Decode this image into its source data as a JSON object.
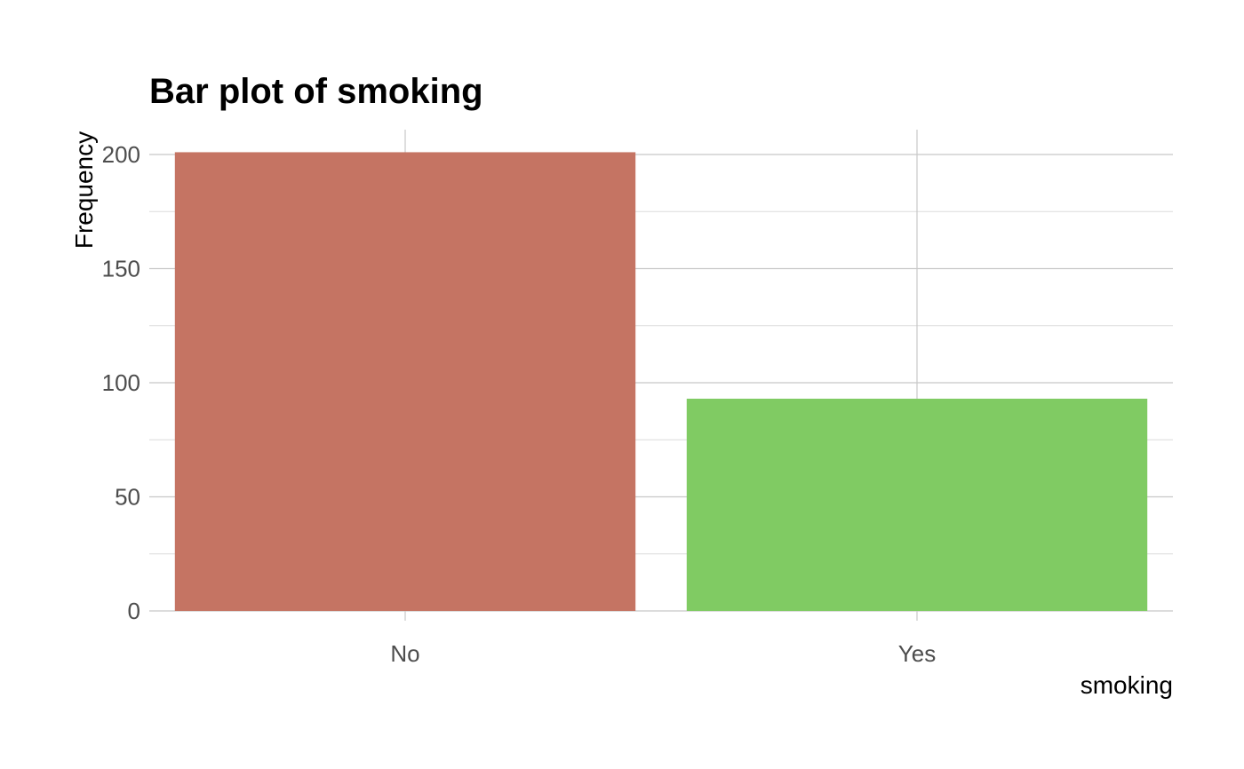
{
  "chart_data": {
    "type": "bar",
    "title": "Bar plot of smoking",
    "xlabel": "smoking",
    "ylabel": "Frequency",
    "categories": [
      "No",
      "Yes"
    ],
    "values": [
      201,
      93
    ],
    "colors": [
      "#C57463",
      "#80CB63"
    ],
    "ylim": [
      0,
      210
    ],
    "yticks": [
      0,
      50,
      100,
      150,
      200
    ],
    "grid": true,
    "legend": "none"
  }
}
